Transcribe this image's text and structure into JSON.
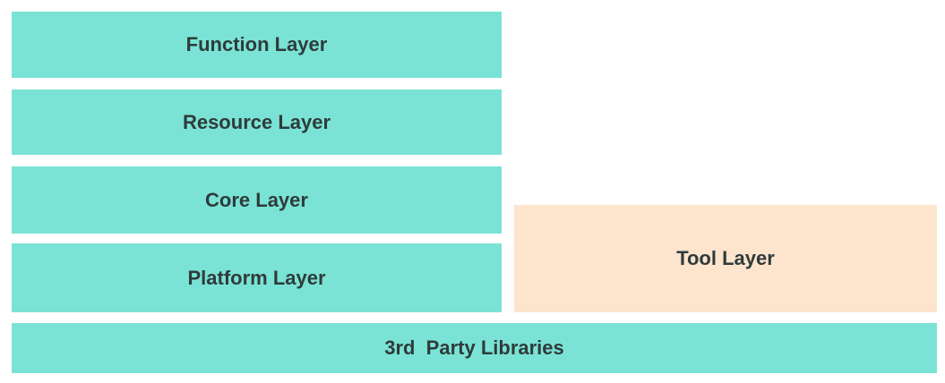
{
  "layers": {
    "function": "Function Layer",
    "resource": "Resource Layer",
    "core": "Core Layer",
    "platform": "Platform Layer",
    "tool": "Tool Layer",
    "third_party": "3rd  Party Libraries"
  },
  "colors": {
    "teal_block": "#7ae3d5",
    "peach_block": "#fde4cc",
    "label_text": "#2f3b3b"
  }
}
